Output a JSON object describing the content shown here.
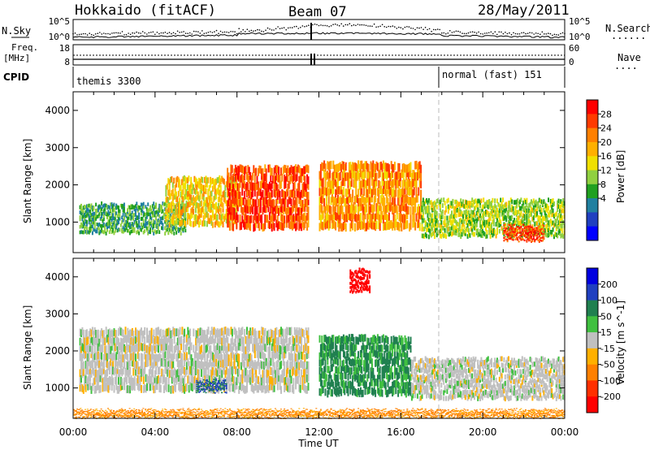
{
  "header": {
    "station": "Hokkaido (fitACF)",
    "beam": "Beam 07",
    "date": "28/May/2011"
  },
  "noise_panel": {
    "left_label": "N.Sky",
    "right_label": "N.Search",
    "right_legend": "......",
    "ticks_left": [
      "10^5",
      "10^0"
    ],
    "ticks_right": [
      "10^5",
      "10^0"
    ]
  },
  "freq_panel": {
    "left_label_1": "Freq.",
    "left_label_2": "[MHz]",
    "right_label": "Nave",
    "right_legend": "....",
    "ticks_left": [
      "18",
      "8"
    ],
    "ticks_right": [
      "60",
      "0"
    ]
  },
  "cpid_panel": {
    "label": "CPID",
    "mode_1": "themis 3300",
    "mode_2": "normal (fast) 151"
  },
  "power_colorbar": {
    "title": "Power [dB]",
    "ticks": [
      "28",
      "24",
      "20",
      "16",
      "12",
      "8",
      "4"
    ],
    "colors": [
      "#ff0000",
      "#ff3b00",
      "#ff8000",
      "#ffb000",
      "#f0e000",
      "#90d040",
      "#20a020",
      "#2080a0",
      "#2040c0",
      "#0000ff"
    ]
  },
  "velocity_colorbar": {
    "title": "Velocity [m s^-1]",
    "ticks": [
      "200",
      "100",
      "50",
      "15",
      "-15",
      "-50",
      "-100",
      "-200"
    ],
    "colors": [
      "#0000e0",
      "#2040c0",
      "#208050",
      "#40c040",
      "#c0c0c0",
      "#ffb000",
      "#ff8000",
      "#ff3000",
      "#ff0000"
    ]
  },
  "x_axis": {
    "label": "Time UT",
    "ticks": [
      "00:00",
      "04:00",
      "08:00",
      "12:00",
      "16:00",
      "20:00",
      "00:00"
    ]
  },
  "chart_data": [
    {
      "type": "heatmap",
      "title": "Power",
      "ylabel": "Slant Range [km]",
      "xlabel": "Time UT",
      "x_range_hours": [
        0,
        24
      ],
      "ylim": [
        180,
        4500
      ],
      "yticks": [
        "1000",
        "2000",
        "3000",
        "4000"
      ],
      "colorbar_label": "Power [dB]",
      "colorbar_range": [
        0,
        30
      ],
      "bands": [
        {
          "t0": 0.3,
          "t1": 5.5,
          "r0": 700,
          "r1": 1500,
          "level": 10
        },
        {
          "t0": 4.5,
          "t1": 8.0,
          "r0": 900,
          "r1": 2200,
          "level": 18
        },
        {
          "t0": 7.5,
          "t1": 11.5,
          "r0": 800,
          "r1": 2500,
          "level": 26
        },
        {
          "t0": 12.0,
          "t1": 17.0,
          "r0": 800,
          "r1": 2600,
          "level": 22
        },
        {
          "t0": 17.0,
          "t1": 24.0,
          "r0": 600,
          "r1": 1600,
          "level": 14
        },
        {
          "t0": 21.0,
          "t1": 23.0,
          "r0": 500,
          "r1": 900,
          "level": 27
        }
      ]
    },
    {
      "type": "heatmap",
      "title": "Velocity",
      "ylabel": "Slant Range [km]",
      "xlabel": "Time UT",
      "x_range_hours": [
        0,
        24
      ],
      "ylim": [
        180,
        4500
      ],
      "yticks": [
        "1000",
        "2000",
        "3000",
        "4000"
      ],
      "colorbar_label": "Velocity [m s^-1]",
      "colorbar_range": [
        -200,
        200
      ],
      "bands": [
        {
          "t0": 0.3,
          "t1": 11.5,
          "r0": 900,
          "r1": 2600,
          "level": 0
        },
        {
          "t0": 6.0,
          "t1": 7.5,
          "r0": 900,
          "r1": 1200,
          "level": 80
        },
        {
          "t0": 12.0,
          "t1": 16.5,
          "r0": 800,
          "r1": 2400,
          "level": 40
        },
        {
          "t0": 13.5,
          "t1": 14.5,
          "r0": 3600,
          "r1": 4200,
          "level": -200
        },
        {
          "t0": 16.5,
          "t1": 24.0,
          "r0": 700,
          "r1": 1800,
          "level": 0
        },
        {
          "t0": 0.0,
          "t1": 24.0,
          "r0": 200,
          "r1": 400,
          "level": -40
        }
      ]
    }
  ]
}
